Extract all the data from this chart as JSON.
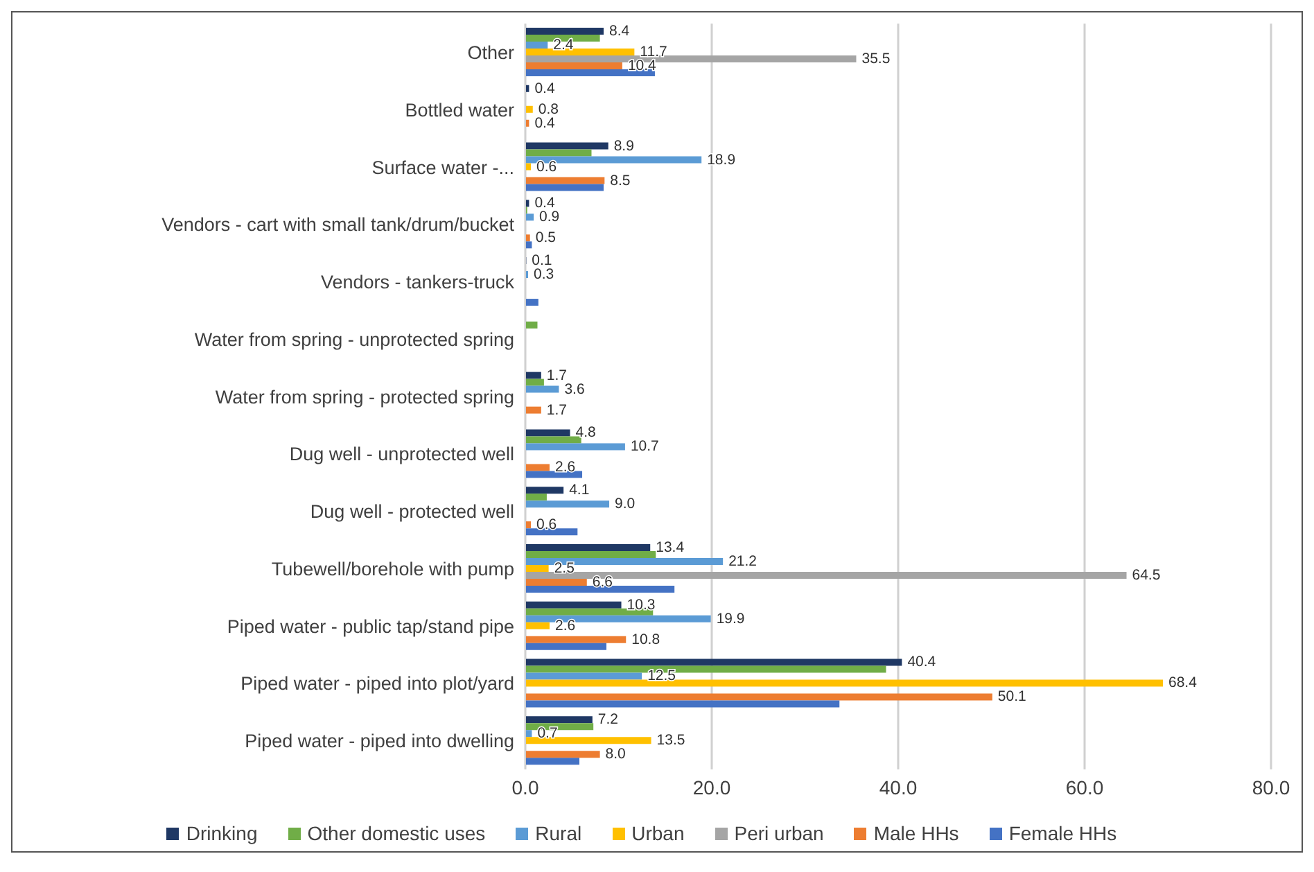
{
  "chart_data": {
    "type": "bar",
    "orientation": "horizontal",
    "categories": [
      "Other",
      "Bottled water",
      "Surface water -...",
      "Vendors - cart with small tank/drum/bucket",
      "Vendors - tankers-truck",
      "Water from spring - unprotected spring",
      "Water from spring - protected spring",
      "Dug well - unprotected well",
      "Dug well - protected well",
      "Tubewell/borehole with pump",
      "Piped water - public tap/stand pipe",
      "Piped  water - piped into plot/yard",
      "Piped  water - piped into dwelling"
    ],
    "series": [
      {
        "name": "Drinking",
        "color": "#1f3864",
        "values": [
          8.4,
          0.4,
          8.9,
          0.4,
          0.1,
          0,
          1.7,
          4.8,
          4.1,
          13.4,
          10.3,
          40.4,
          7.2
        ],
        "value_labels": [
          "8.4",
          "0.4",
          "8.9",
          "0.4",
          "0.1",
          null,
          "1.7",
          "4.8",
          "4.1",
          "13.4",
          "10.3",
          "40.4",
          "7.2"
        ]
      },
      {
        "name": "Other domestic uses",
        "color": "#70ad47",
        "values": [
          8.0,
          0,
          7.1,
          0.2,
          0,
          1.3,
          2.0,
          6.0,
          2.3,
          14.0,
          13.7,
          38.7,
          7.3
        ]
      },
      {
        "name": "Rural",
        "color": "#5b9bd5",
        "values": [
          2.4,
          0,
          18.9,
          0.9,
          0.3,
          0,
          3.6,
          10.7,
          9.0,
          21.2,
          19.9,
          12.5,
          0.7
        ],
        "value_labels": [
          "2.4",
          null,
          "18.9",
          "0.9",
          "0.3",
          null,
          "3.6",
          "10.7",
          "9.0",
          "21.2",
          "19.9",
          "12.5",
          "0.7"
        ]
      },
      {
        "name": "Urban",
        "color": "#ffc000",
        "values": [
          11.7,
          0.8,
          0.6,
          0,
          0,
          0,
          0,
          0,
          0,
          2.5,
          2.6,
          68.4,
          13.5
        ],
        "value_labels": [
          "11.7",
          "0.8",
          "0.6",
          null,
          null,
          null,
          null,
          null,
          null,
          "2.5",
          "2.6",
          "68.4",
          "13.5"
        ]
      },
      {
        "name": "Peri urban",
        "color": "#a5a5a5",
        "values": [
          35.5,
          0,
          0,
          0,
          0,
          0,
          0,
          0,
          0,
          64.5,
          0,
          0,
          0
        ],
        "value_labels": [
          "35.5",
          null,
          null,
          null,
          null,
          null,
          null,
          null,
          null,
          "64.5",
          null,
          null,
          null
        ]
      },
      {
        "name": "Male HHs",
        "color": "#ed7d31",
        "values": [
          10.4,
          0.4,
          8.5,
          0.5,
          0,
          0,
          1.7,
          2.6,
          0.6,
          6.6,
          10.8,
          50.1,
          8.0
        ],
        "value_labels": [
          "10.4",
          "0.4",
          "8.5",
          "0.5",
          null,
          null,
          "1.7",
          "2.6",
          "0.6",
          "6.6",
          "10.8",
          "50.1",
          "8.0"
        ]
      },
      {
        "name": "Female HHs",
        "color": "#4472c4",
        "values": [
          13.9,
          0,
          8.4,
          0.7,
          1.4,
          0,
          0,
          6.1,
          5.6,
          16.0,
          8.7,
          33.7,
          5.8
        ]
      }
    ],
    "xlim": [
      0,
      80
    ],
    "xticks": [
      {
        "value": 0,
        "label": "0.0"
      },
      {
        "value": 20,
        "label": "20.0"
      },
      {
        "value": 40,
        "label": "40.0"
      },
      {
        "value": 60,
        "label": "60.0"
      },
      {
        "value": 80,
        "label": "80.0"
      }
    ],
    "grid": "x",
    "legend": "bottom"
  }
}
